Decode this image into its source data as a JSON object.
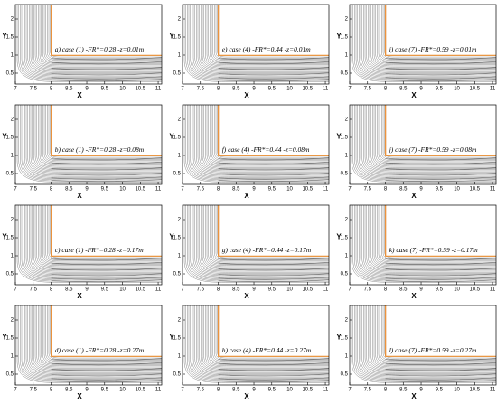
{
  "chart_data": [
    {
      "type": "streamline",
      "caption": "a) case (1) -FR*=0.28 -z=0.01m",
      "xlabel": "X",
      "ylabel": "Y",
      "xlim": [
        7,
        11.1
      ],
      "ylim": [
        0.2,
        2.4
      ],
      "xticks": [
        7,
        7.5,
        8,
        8.5,
        9,
        9.5,
        10,
        10.5,
        11
      ],
      "yticks": [
        0.5,
        1,
        1.5,
        2
      ]
    },
    {
      "type": "streamline",
      "caption": "e) case (4) -FR*=0.44 -z=0.01m",
      "xlabel": "X",
      "ylabel": "Y",
      "xlim": [
        7,
        11.1
      ],
      "ylim": [
        0.2,
        2.4
      ],
      "xticks": [
        7,
        7.5,
        8,
        8.5,
        9,
        9.5,
        10,
        10.5,
        11
      ],
      "yticks": [
        0.5,
        1,
        1.5,
        2
      ]
    },
    {
      "type": "streamline",
      "caption": "i) case (7) -FR*=0.59 -z=0.01m",
      "xlabel": "X",
      "ylabel": "Y",
      "xlim": [
        7,
        11.1
      ],
      "ylim": [
        0.2,
        2.4
      ],
      "xticks": [
        7,
        7.5,
        8,
        8.5,
        9,
        9.5,
        10,
        10.5,
        11
      ],
      "yticks": [
        0.5,
        1,
        1.5,
        2
      ]
    },
    {
      "type": "streamline",
      "caption": "b) case (1) -FR*=0.28 -z=0.08m",
      "xlabel": "X",
      "ylabel": "Y",
      "xlim": [
        7,
        11.1
      ],
      "ylim": [
        0.2,
        2.4
      ],
      "xticks": [
        7,
        7.5,
        8,
        8.5,
        9,
        9.5,
        10,
        10.5,
        11
      ],
      "yticks": [
        0.5,
        1,
        1.5,
        2
      ]
    },
    {
      "type": "streamline",
      "caption": "f) case (4) -FR*=0.44 -z=0.08m",
      "xlabel": "X",
      "ylabel": "Y",
      "xlim": [
        7,
        11.1
      ],
      "ylim": [
        0.2,
        2.4
      ],
      "xticks": [
        7,
        7.5,
        8,
        8.5,
        9,
        9.5,
        10,
        10.5,
        11
      ],
      "yticks": [
        0.5,
        1,
        1.5,
        2
      ]
    },
    {
      "type": "streamline",
      "caption": "j) case (7) -FR*=0.59 -z=0.08m",
      "xlabel": "X",
      "ylabel": "Y",
      "xlim": [
        7,
        11.1
      ],
      "ylim": [
        0.2,
        2.4
      ],
      "xticks": [
        7,
        7.5,
        8,
        8.5,
        9,
        9.5,
        10,
        10.5,
        11
      ],
      "yticks": [
        0.5,
        1,
        1.5,
        2
      ]
    },
    {
      "type": "streamline",
      "caption": "c) case (1) -FR*=0.28 -z=0.17m",
      "xlabel": "X",
      "ylabel": "Y",
      "xlim": [
        7,
        11.1
      ],
      "ylim": [
        0.2,
        2.4
      ],
      "xticks": [
        7,
        7.5,
        8,
        8.5,
        9,
        9.5,
        10,
        10.5,
        11
      ],
      "yticks": [
        0.5,
        1,
        1.5,
        2
      ]
    },
    {
      "type": "streamline",
      "caption": "g) case (4) -FR*=0.44 -z=0.17m",
      "xlabel": "X",
      "ylabel": "Y",
      "xlim": [
        7,
        11.1
      ],
      "ylim": [
        0.2,
        2.4
      ],
      "xticks": [
        7,
        7.5,
        8,
        8.5,
        9,
        9.5,
        10,
        10.5,
        11
      ],
      "yticks": [
        0.5,
        1,
        1.5,
        2
      ]
    },
    {
      "type": "streamline",
      "caption": "k) case (7) -FR*=0.59 -z=0.17m",
      "xlabel": "X",
      "ylabel": "Y",
      "xlim": [
        7,
        11.1
      ],
      "ylim": [
        0.2,
        2.4
      ],
      "xticks": [
        7,
        7.5,
        8,
        8.5,
        9,
        9.5,
        10,
        10.5,
        11
      ],
      "yticks": [
        0.5,
        1,
        1.5,
        2
      ]
    },
    {
      "type": "streamline",
      "caption": "d) case (1) -FR*=0.28 -z=0.27m",
      "xlabel": "X",
      "ylabel": "Y",
      "xlim": [
        7,
        11.1
      ],
      "ylim": [
        0.2,
        2.4
      ],
      "xticks": [
        7,
        7.5,
        8,
        8.5,
        9,
        9.5,
        10,
        10.5,
        11
      ],
      "yticks": [
        0.5,
        1,
        1.5,
        2
      ]
    },
    {
      "type": "streamline",
      "caption": "h) case (4) -FR*=0.44 -z=0.27m",
      "xlabel": "X",
      "ylabel": "Y",
      "xlim": [
        7,
        11.1
      ],
      "ylim": [
        0.2,
        2.4
      ],
      "xticks": [
        7,
        7.5,
        8,
        8.5,
        9,
        9.5,
        10,
        10.5,
        11
      ],
      "yticks": [
        0.5,
        1,
        1.5,
        2
      ]
    },
    {
      "type": "streamline",
      "caption": "l) case (7) -FR*=0.59 -z=0.27m",
      "xlabel": "X",
      "ylabel": "Y",
      "xlim": [
        7,
        11.1
      ],
      "ylim": [
        0.2,
        2.4
      ],
      "xticks": [
        7,
        7.5,
        8,
        8.5,
        9,
        9.5,
        10,
        10.5,
        11
      ],
      "yticks": [
        0.5,
        1,
        1.5,
        2
      ]
    }
  ]
}
